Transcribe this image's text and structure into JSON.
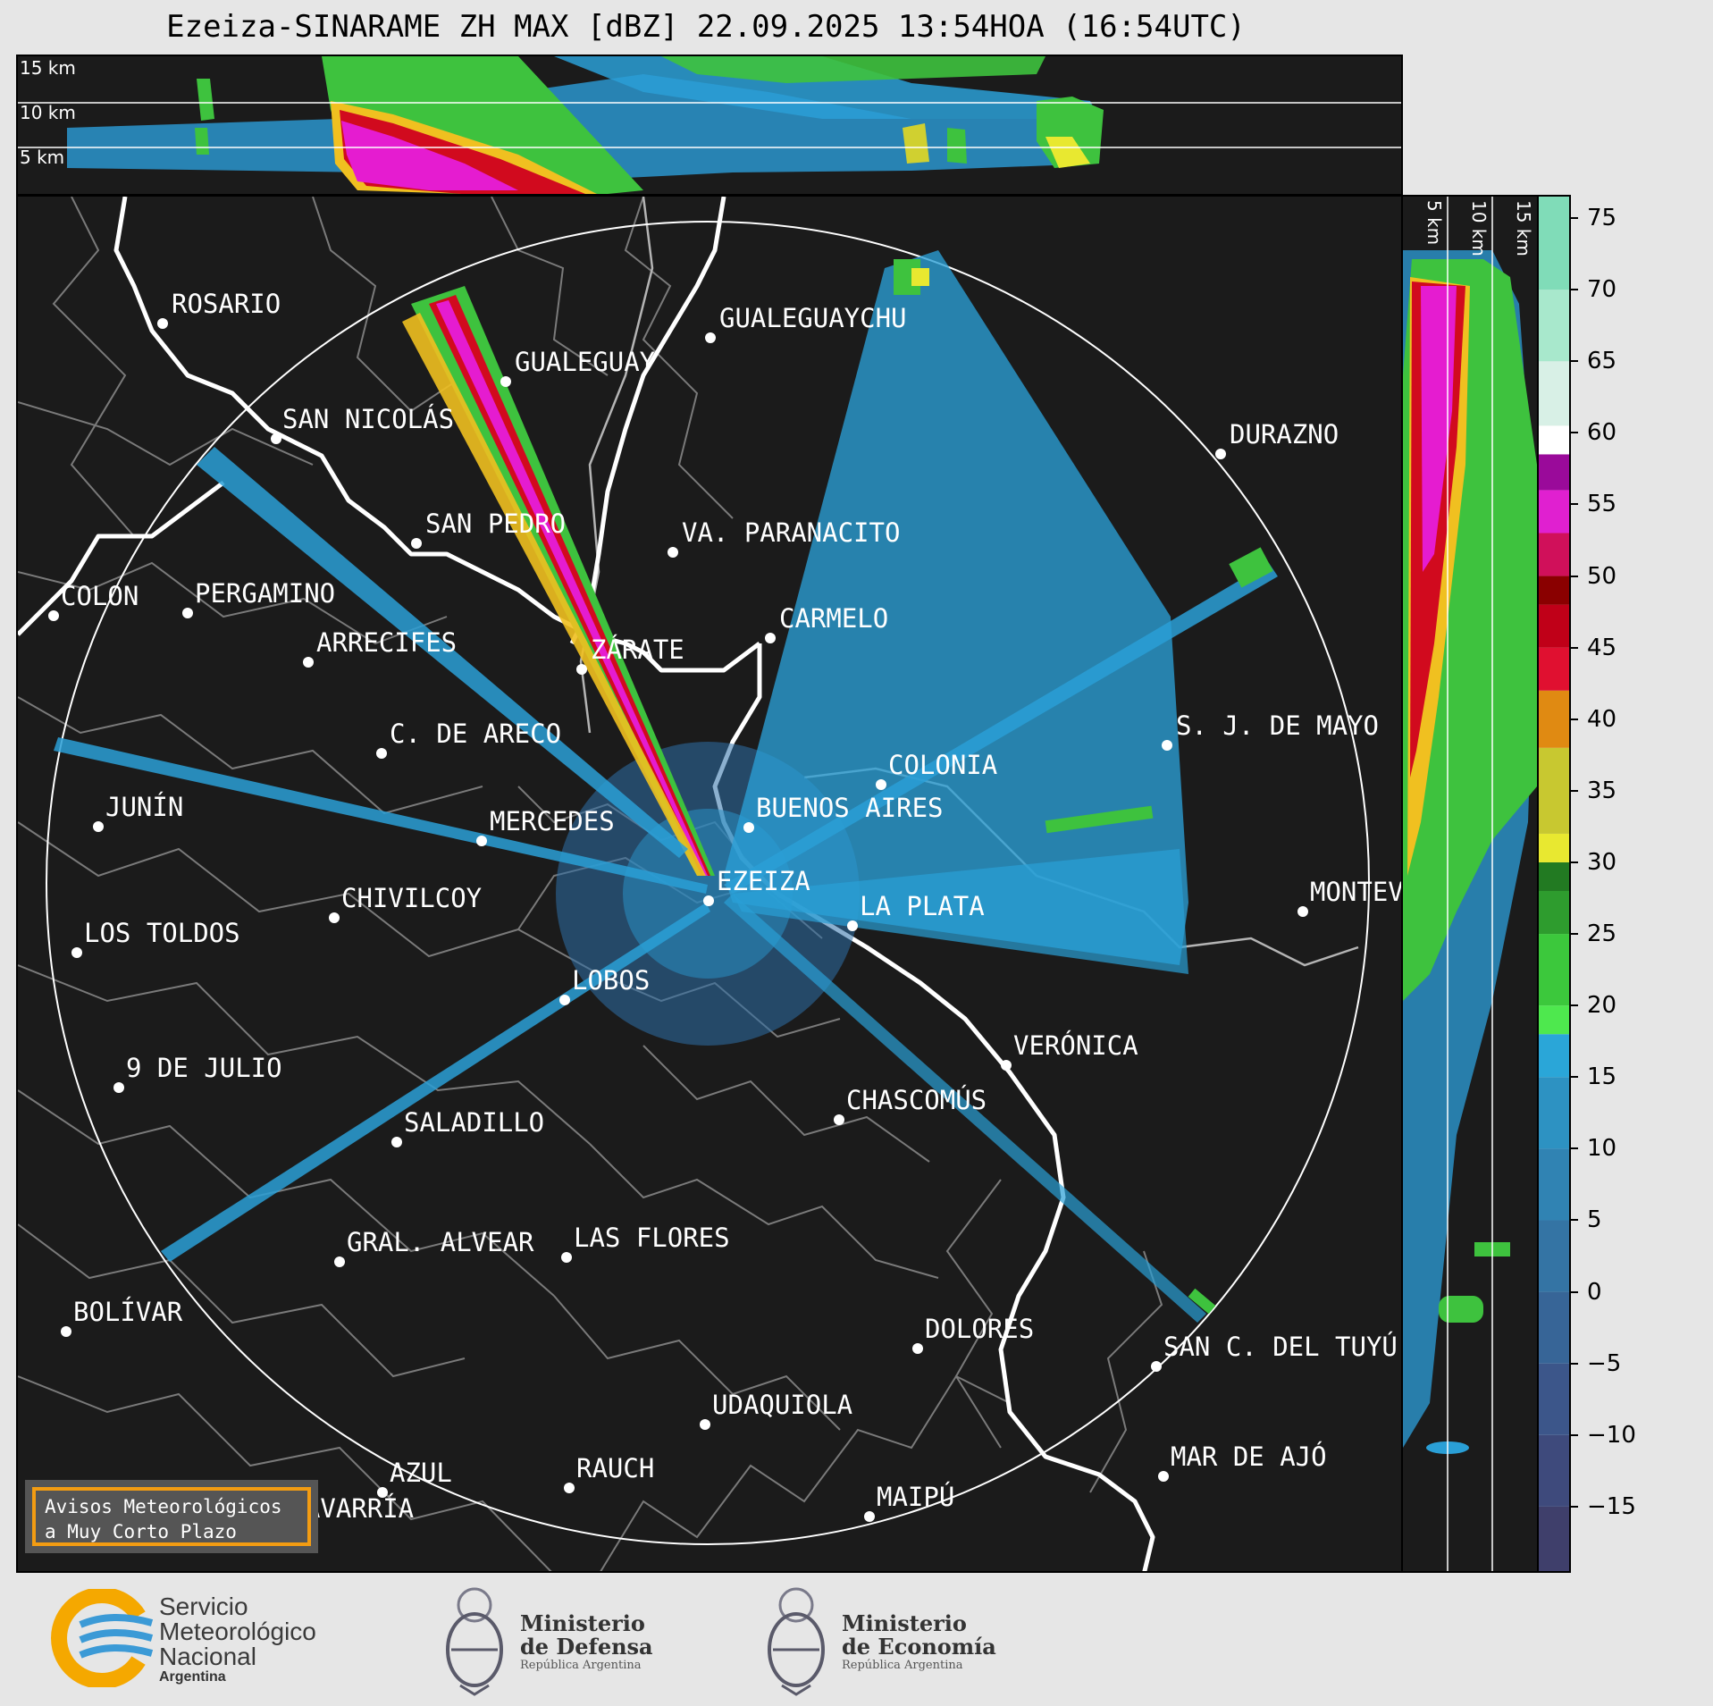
{
  "title": "Ezeiza-SINARAME ZH MAX [dBZ] 22.09.2025 13:54HOA (16:54UTC)",
  "top_panel": {
    "altitude_labels": [
      "15 km",
      "10 km",
      "5 km"
    ]
  },
  "side_panel": {
    "altitude_labels": [
      "5 km",
      "10 km",
      "15 km"
    ]
  },
  "colorbar": {
    "ticks": [
      "75",
      "70",
      "65",
      "60",
      "55",
      "50",
      "45",
      "40",
      "35",
      "30",
      "25",
      "20",
      "15",
      "10",
      "5",
      "0",
      "−5",
      "−10",
      "−15"
    ],
    "min": -19.5,
    "max": 76.5
  },
  "cities": [
    {
      "name": "ROSARIO"
    },
    {
      "name": "GUALEGUAYCHU"
    },
    {
      "name": "GUALEGUAY"
    },
    {
      "name": "SAN NICOLÁS"
    },
    {
      "name": "DURAZNO"
    },
    {
      "name": "SAN PEDRO"
    },
    {
      "name": "VA. PARANACITO"
    },
    {
      "name": "COLON"
    },
    {
      "name": "PERGAMINO"
    },
    {
      "name": "CARMELO"
    },
    {
      "name": "ARRECIFES"
    },
    {
      "name": "ZÁRATE"
    },
    {
      "name": "C. DE ARECO"
    },
    {
      "name": "S. J. DE MAYO"
    },
    {
      "name": "COLONIA"
    },
    {
      "name": "JUNÍN"
    },
    {
      "name": "BUENOS AIRES"
    },
    {
      "name": "MERCEDES"
    },
    {
      "name": "EZEIZA"
    },
    {
      "name": "MONTEVIDEO"
    },
    {
      "name": "CHIVILCOY"
    },
    {
      "name": "LA PLATA"
    },
    {
      "name": "LOS TOLDOS"
    },
    {
      "name": "LOBOS"
    },
    {
      "name": "VERÓNICA"
    },
    {
      "name": "9 DE JULIO"
    },
    {
      "name": "CHASCOMÚS"
    },
    {
      "name": "SALADILLO"
    },
    {
      "name": "GRAL. ALVEAR"
    },
    {
      "name": "LAS FLORES"
    },
    {
      "name": "BOLÍVAR"
    },
    {
      "name": "DOLORES"
    },
    {
      "name": "SAN C. DEL TUYÚ"
    },
    {
      "name": "UDAQUIOLA"
    },
    {
      "name": "MAR DE AJÓ"
    },
    {
      "name": "AZUL"
    },
    {
      "name": "RAUCH"
    },
    {
      "name": "OLAVARRÍA"
    },
    {
      "name": "MAIPÚ"
    }
  ],
  "avisos": {
    "line1": "Avisos Meteorológicos",
    "line2": "a Muy Corto Plazo"
  },
  "footer": {
    "smn": {
      "line1": "Servicio",
      "line2": "Meteorológico",
      "line3": "Nacional",
      "line4": "Argentina"
    },
    "defensa": {
      "line1": "Ministerio",
      "line2": "de Defensa",
      "line3": "República Argentina"
    },
    "economia": {
      "line1": "Ministerio",
      "line2": "de Economía",
      "line3": "República Argentina"
    }
  },
  "colors": {
    "background": "#1b1b1b",
    "coast": "#ffffff",
    "borders": "#808080",
    "range_ring": "#ffffff",
    "accent_orange": "#f39c12"
  }
}
